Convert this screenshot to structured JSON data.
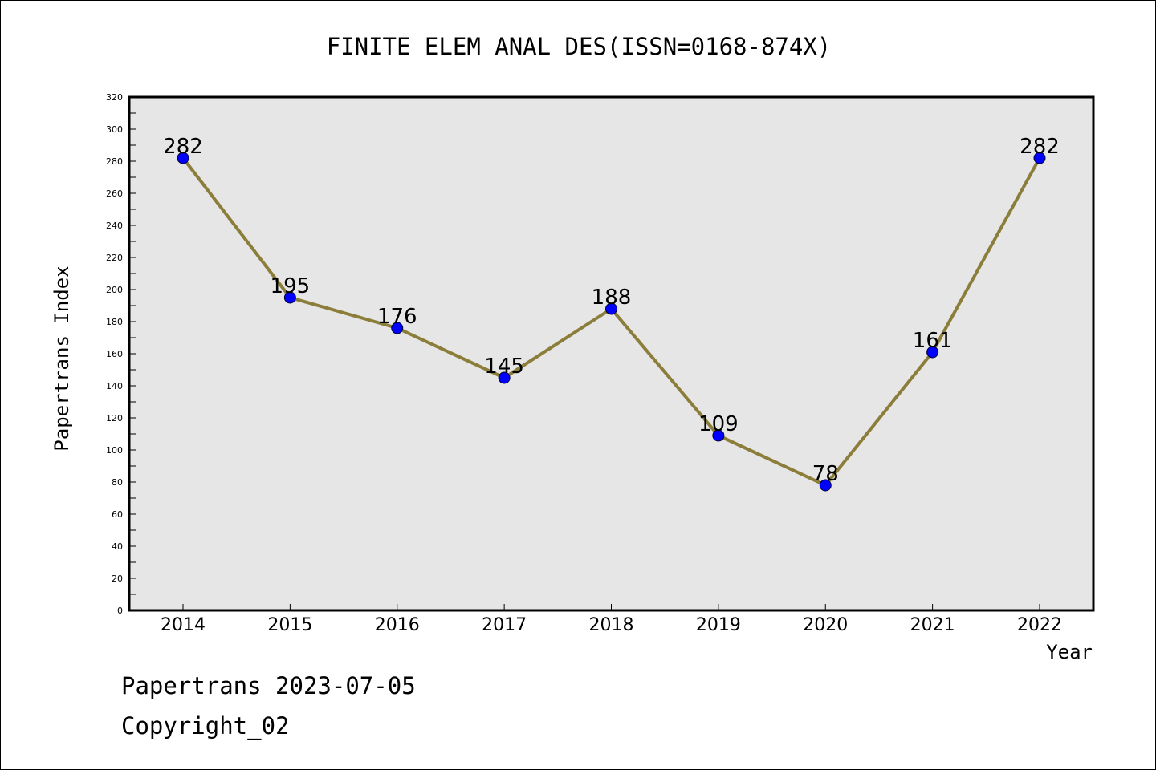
{
  "chart_data": {
    "type": "line",
    "title": "FINITE ELEM ANAL DES(ISSN=0168-874X)",
    "xlabel": "Year",
    "ylabel": "Papertrans Index",
    "categories": [
      "2014",
      "2015",
      "2016",
      "2017",
      "2018",
      "2019",
      "2020",
      "2021",
      "2022"
    ],
    "series": [
      {
        "values": [
          282,
          195,
          176,
          145,
          188,
          109,
          78,
          161,
          282
        ]
      }
    ],
    "data_labels": [
      "282",
      "195",
      "176",
      "145",
      "188",
      "109",
      "78",
      "161",
      "282"
    ],
    "yticks": [
      "0",
      "20",
      "40",
      "60",
      "80",
      "100",
      "120",
      "140",
      "160",
      "180",
      "200",
      "220",
      "240",
      "260",
      "280",
      "300",
      "320"
    ],
    "ylim": [
      0,
      320
    ],
    "grid": false,
    "legend": "none",
    "colors": {
      "line": "#8B7D3A",
      "marker": "#0000FF",
      "plot_background": "#E6E6E6"
    }
  },
  "footer": {
    "line1": "Papertrans 2023-07-05",
    "line2": "Copyright_02"
  }
}
